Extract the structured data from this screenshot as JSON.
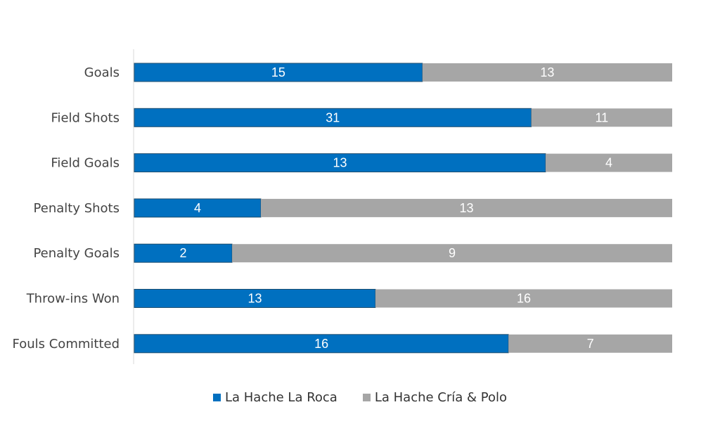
{
  "chart_data": {
    "type": "bar",
    "orientation": "horizontal",
    "stacking": "percent",
    "categories": [
      "Goals",
      "Field Shots",
      "Field Goals",
      "Penalty Shots",
      "Penalty Goals",
      "Throw-ins Won",
      "Fouls Committed"
    ],
    "series": [
      {
        "name": "La Hache La Roca",
        "values": [
          15,
          31,
          13,
          4,
          2,
          13,
          16
        ],
        "color": "#0070C0"
      },
      {
        "name": "La Hache Cría & Polo",
        "values": [
          13,
          11,
          4,
          13,
          9,
          16,
          7
        ],
        "color": "#A6A6A6"
      }
    ],
    "title": "",
    "xlabel": "",
    "ylabel": "",
    "data_labels": true,
    "grid": false,
    "legend_position": "bottom"
  }
}
